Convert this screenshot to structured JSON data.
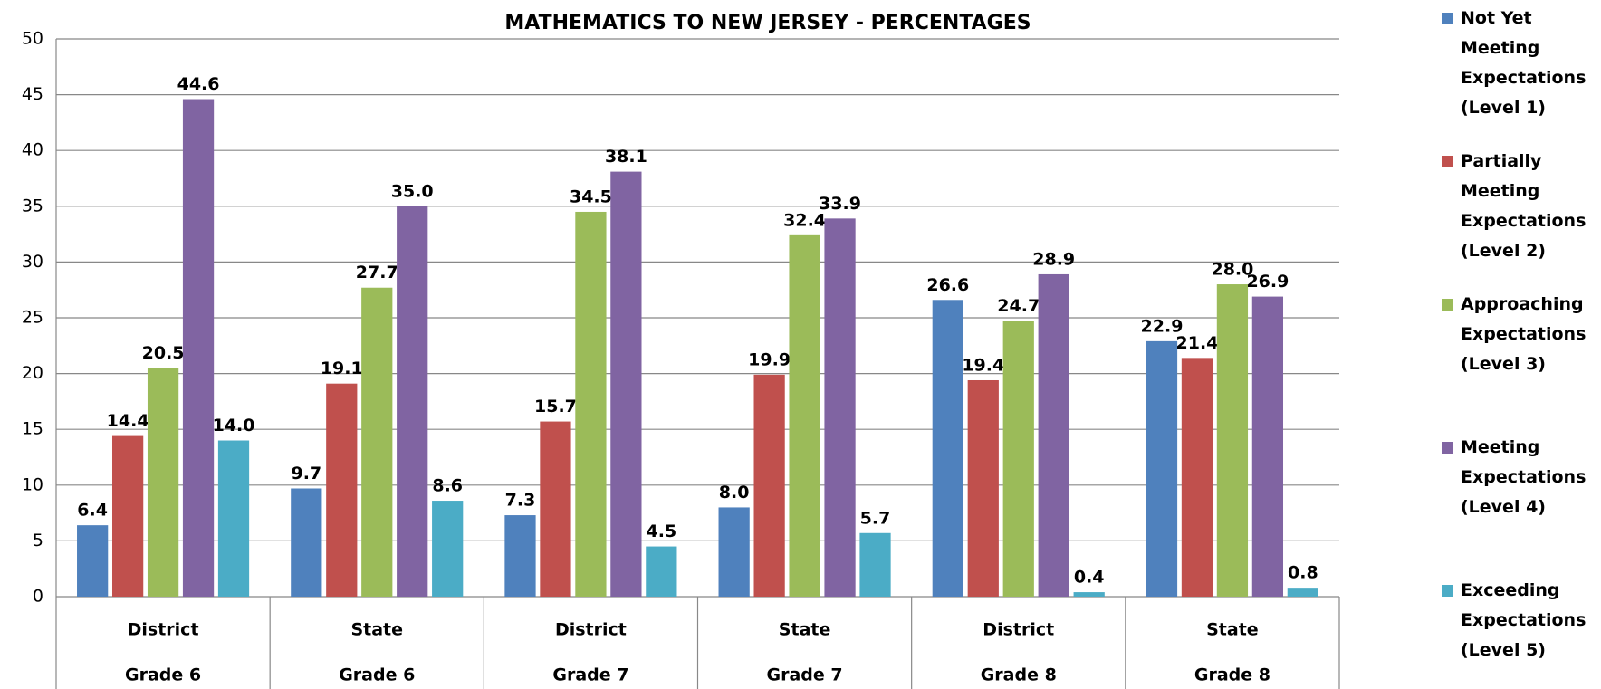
{
  "chart_data": {
    "type": "bar",
    "title": "MATHEMATICS TO NEW JERSEY - PERCENTAGES",
    "categories": [
      [
        "District",
        "Grade 6"
      ],
      [
        "State",
        "Grade 6"
      ],
      [
        "District",
        "Grade 7"
      ],
      [
        "State",
        "Grade 7"
      ],
      [
        "District",
        "Grade 8"
      ],
      [
        "State",
        "Grade 8"
      ]
    ],
    "series": [
      {
        "name": "Not Yet Meeting Expectations (Level 1)",
        "color": "#4f81bd",
        "values": [
          6.4,
          9.7,
          7.3,
          8.0,
          26.6,
          22.9
        ],
        "value_labels": [
          "6.4",
          "9.7",
          "7.3",
          "8.0",
          "26.6",
          "22.9"
        ]
      },
      {
        "name": "Partially Meeting Expectations (Level 2)",
        "color": "#c0504d",
        "values": [
          14.4,
          19.1,
          15.7,
          19.9,
          19.4,
          21.4
        ],
        "value_labels": [
          "14.4",
          "19.1",
          "15.7",
          "19.9",
          "19.4",
          "21.4"
        ]
      },
      {
        "name": "Approaching Expectations (Level 3)",
        "color": "#9bbb59",
        "values": [
          20.5,
          27.7,
          34.5,
          32.4,
          24.7,
          28.0
        ],
        "value_labels": [
          "20.5",
          "27.7",
          "34.5",
          "32.4",
          "24.7",
          "28.0"
        ]
      },
      {
        "name": "Meeting Expectations (Level 4)",
        "color": "#8064a2",
        "values": [
          44.6,
          35.0,
          38.1,
          33.9,
          28.9,
          26.9
        ],
        "value_labels": [
          "44.6",
          "35.0",
          "38.1",
          "33.9",
          "28.9",
          "26.9"
        ]
      },
      {
        "name": "Exceeding Expectations (Level 5)",
        "color": "#4bacc6",
        "values": [
          14.0,
          8.6,
          4.5,
          5.7,
          0.4,
          0.8
        ],
        "value_labels": [
          "14.0",
          "8.6",
          "4.5",
          "5.7",
          "0.4",
          "0.8"
        ]
      }
    ],
    "ylim": [
      0,
      50
    ],
    "yticks": [
      0,
      5,
      10,
      15,
      20,
      25,
      30,
      35,
      40,
      45,
      50
    ],
    "grid": true,
    "legend": "right"
  }
}
